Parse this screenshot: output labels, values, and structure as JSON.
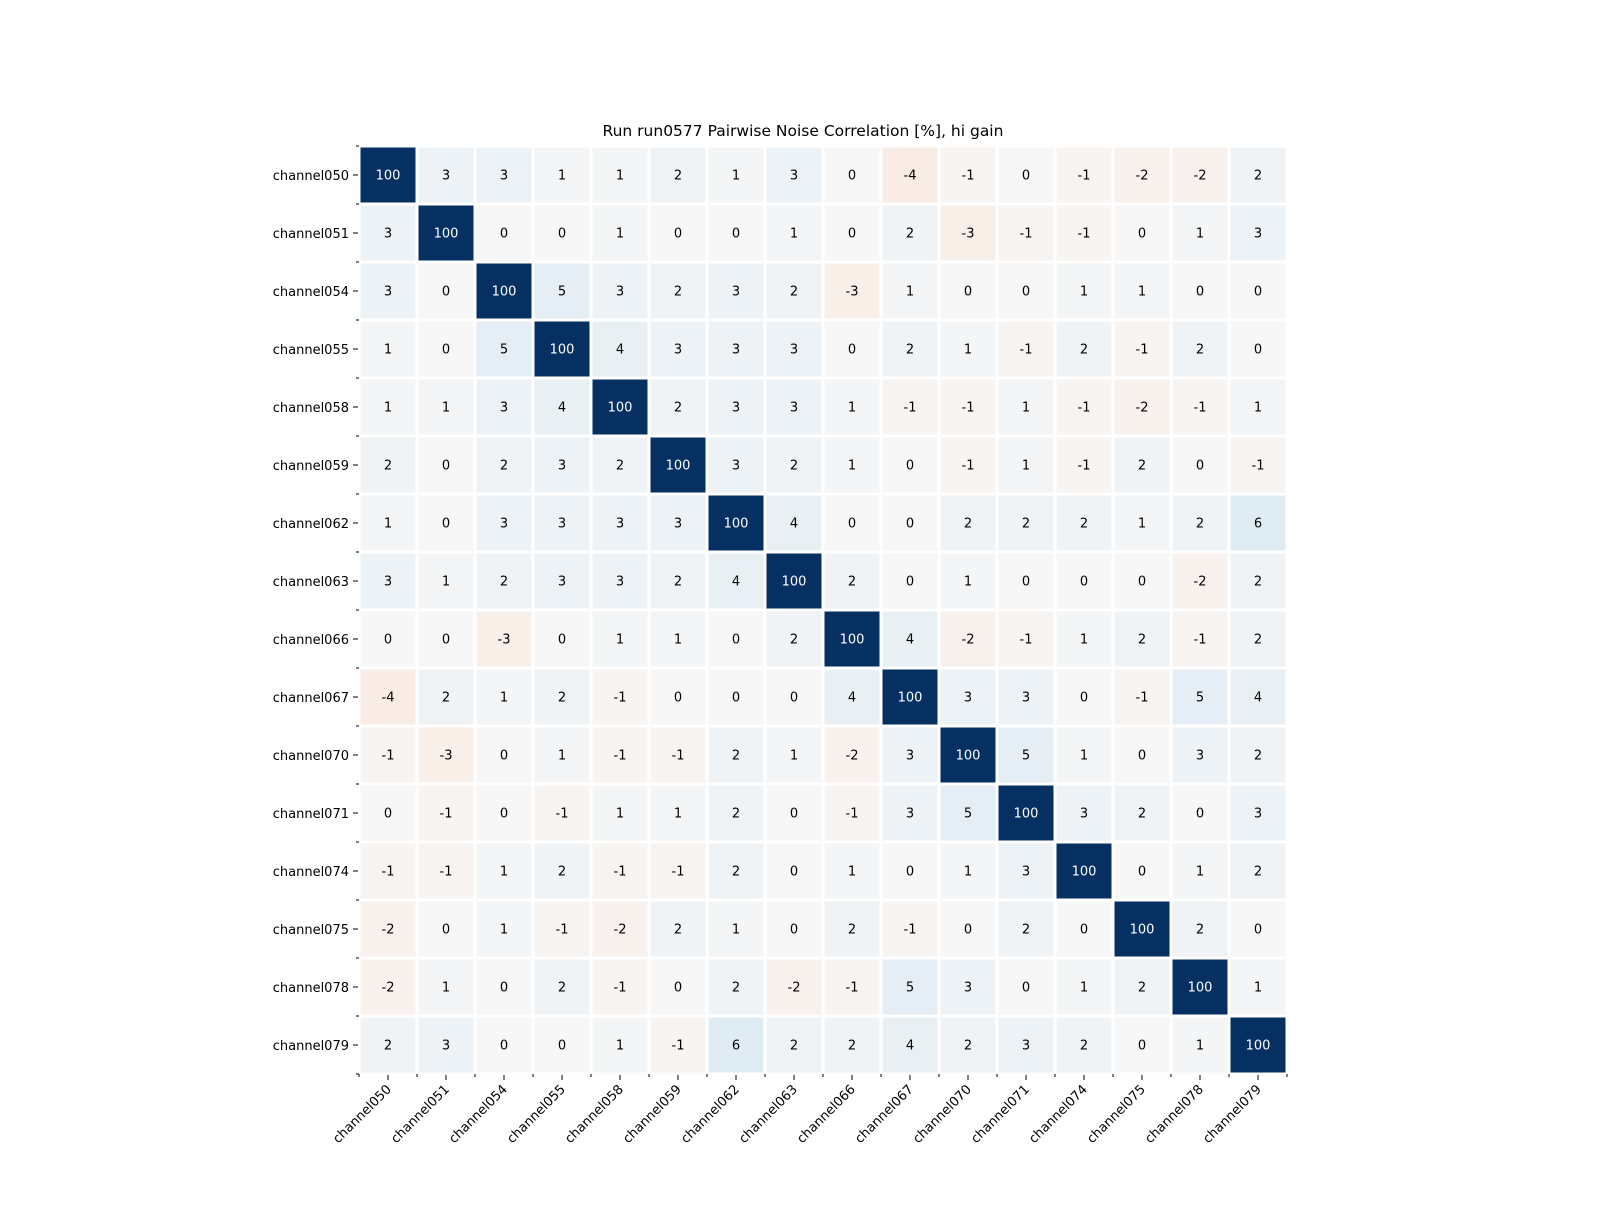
{
  "chart_data": {
    "type": "heatmap",
    "title": "Run run0577 Pairwise Noise Correlation [%], hi gain",
    "xlabel": "",
    "ylabel": "",
    "x_categories": [
      "channel050",
      "channel051",
      "channel054",
      "channel055",
      "channel058",
      "channel059",
      "channel062",
      "channel063",
      "channel066",
      "channel067",
      "channel070",
      "channel071",
      "channel074",
      "channel075",
      "channel078",
      "channel079"
    ],
    "y_categories": [
      "channel050",
      "channel051",
      "channel054",
      "channel055",
      "channel058",
      "channel059",
      "channel062",
      "channel063",
      "channel066",
      "channel067",
      "channel070",
      "channel071",
      "channel074",
      "channel075",
      "channel078",
      "channel079"
    ],
    "values": [
      [
        100,
        3,
        3,
        1,
        1,
        2,
        1,
        3,
        0,
        -4,
        -1,
        0,
        -1,
        -2,
        -2,
        2
      ],
      [
        3,
        100,
        0,
        0,
        1,
        0,
        0,
        1,
        0,
        2,
        -3,
        -1,
        -1,
        0,
        1,
        3
      ],
      [
        3,
        0,
        100,
        5,
        3,
        2,
        3,
        2,
        -3,
        1,
        0,
        0,
        1,
        1,
        0,
        0
      ],
      [
        1,
        0,
        5,
        100,
        4,
        3,
        3,
        3,
        0,
        2,
        1,
        -1,
        2,
        -1,
        2,
        0
      ],
      [
        1,
        1,
        3,
        4,
        100,
        2,
        3,
        3,
        1,
        -1,
        -1,
        1,
        -1,
        -2,
        -1,
        1
      ],
      [
        2,
        0,
        2,
        3,
        2,
        100,
        3,
        2,
        1,
        0,
        -1,
        1,
        -1,
        2,
        0,
        -1
      ],
      [
        1,
        0,
        3,
        3,
        3,
        3,
        100,
        4,
        0,
        0,
        2,
        2,
        2,
        1,
        2,
        6
      ],
      [
        3,
        1,
        2,
        3,
        3,
        2,
        4,
        100,
        2,
        0,
        1,
        0,
        0,
        0,
        -2,
        2
      ],
      [
        0,
        0,
        -3,
        0,
        1,
        1,
        0,
        2,
        100,
        4,
        -2,
        -1,
        1,
        2,
        -1,
        2
      ],
      [
        -4,
        2,
        1,
        2,
        -1,
        0,
        0,
        0,
        4,
        100,
        3,
        3,
        0,
        -1,
        5,
        4
      ],
      [
        -1,
        -3,
        0,
        1,
        -1,
        -1,
        2,
        1,
        -2,
        3,
        100,
        5,
        1,
        0,
        3,
        2
      ],
      [
        0,
        -1,
        0,
        -1,
        1,
        1,
        2,
        0,
        -1,
        3,
        5,
        100,
        3,
        2,
        0,
        3
      ],
      [
        -1,
        -1,
        1,
        2,
        -1,
        -1,
        2,
        0,
        1,
        0,
        1,
        3,
        100,
        0,
        1,
        2
      ],
      [
        -2,
        0,
        1,
        -1,
        -2,
        2,
        1,
        0,
        2,
        -1,
        0,
        2,
        0,
        100,
        2,
        0
      ],
      [
        -2,
        1,
        0,
        2,
        -1,
        0,
        2,
        -2,
        -1,
        5,
        3,
        0,
        1,
        2,
        100,
        1
      ],
      [
        2,
        3,
        0,
        0,
        1,
        -1,
        6,
        2,
        2,
        4,
        2,
        3,
        2,
        0,
        1,
        100
      ]
    ],
    "colormap": "RdBu diverging (red negative, white zero, dark blue positive)",
    "colors": {
      "positive_max": "#053061",
      "neutral": "#f7f7f7",
      "negative_max": "#67001f"
    },
    "value_range": [
      -100,
      100
    ],
    "annotated": true,
    "grid": false,
    "legend": "none",
    "colorbar": false
  }
}
